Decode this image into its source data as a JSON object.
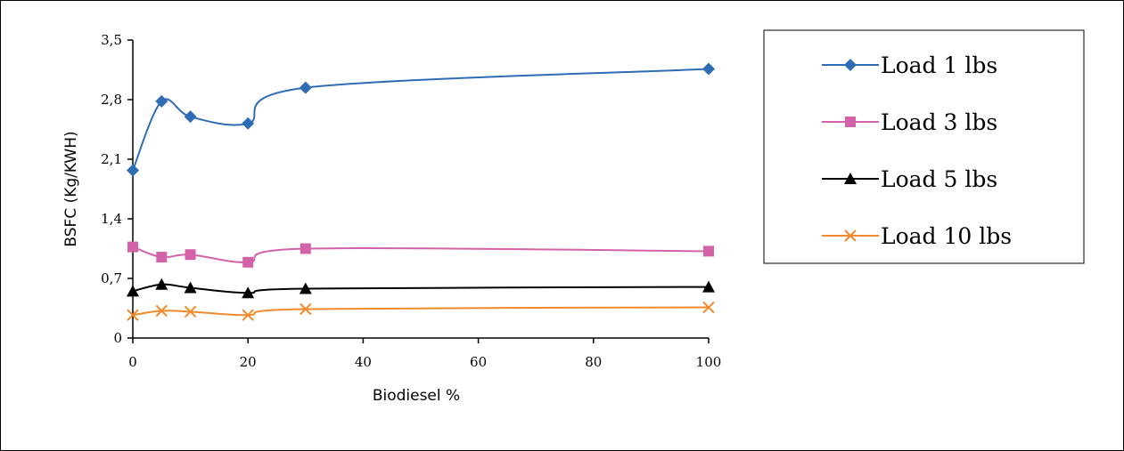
{
  "chart_data": {
    "type": "line",
    "xlabel": "Biodiesel %",
    "ylabel": "BSFC (Kg/KWH)",
    "xlim": [
      0,
      100
    ],
    "ylim": [
      0,
      3.5
    ],
    "x_ticks": [
      "0",
      "20",
      "40",
      "60",
      "80",
      "100"
    ],
    "y_ticks": [
      "0",
      "0,7",
      "1,4",
      "2,1",
      "2,8",
      "3,5"
    ],
    "grid": false,
    "legend_position": "right",
    "x": [
      0,
      5,
      10,
      20,
      30,
      100
    ],
    "series": [
      {
        "name": "Load 1 lbs",
        "marker": "diamond",
        "color": "#2E6DB4",
        "values": [
          1.97,
          2.78,
          2.6,
          2.52,
          2.94,
          3.16
        ]
      },
      {
        "name": "Load 3 lbs",
        "marker": "square",
        "color": "#D462A8",
        "values": [
          1.07,
          0.95,
          0.98,
          0.89,
          1.05,
          1.02
        ]
      },
      {
        "name": "Load 5 lbs",
        "marker": "triangle",
        "color": "#000000",
        "values": [
          0.55,
          0.63,
          0.59,
          0.53,
          0.58,
          0.6
        ]
      },
      {
        "name": "Load 10 lbs",
        "marker": "x",
        "color": "#F08A2C",
        "values": [
          0.27,
          0.32,
          0.31,
          0.27,
          0.34,
          0.36
        ]
      }
    ]
  }
}
